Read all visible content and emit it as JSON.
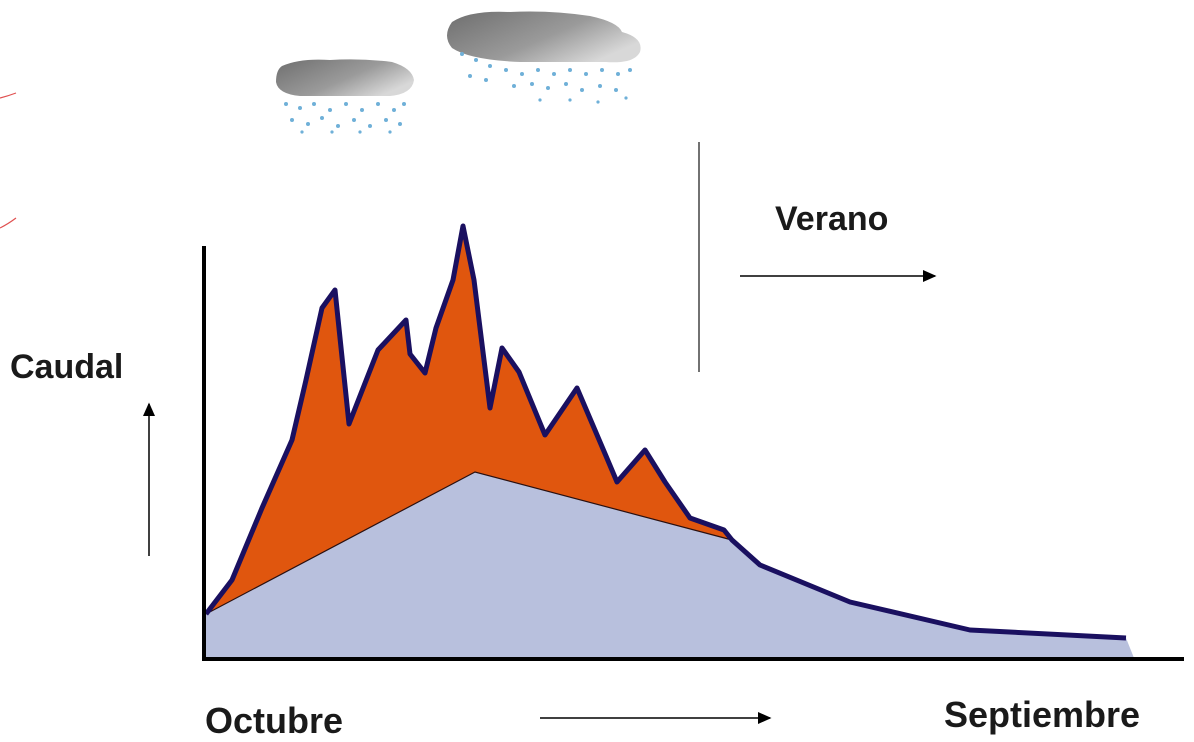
{
  "labels": {
    "flow_axis": "Caudal",
    "season": "Verano",
    "start_month": "Octubre",
    "end_month": "Septiembre"
  },
  "colors": {
    "storm_runoff": "#e0560e",
    "base_flow": "#b8c0dd",
    "hydrograph_line": "#1a1060",
    "axis": "#000000",
    "cloud": "#8c8c8c",
    "rain": "#6fb0d8"
  },
  "icons": [
    "cloud-icon",
    "rain-icon",
    "arrow-icon"
  ]
}
